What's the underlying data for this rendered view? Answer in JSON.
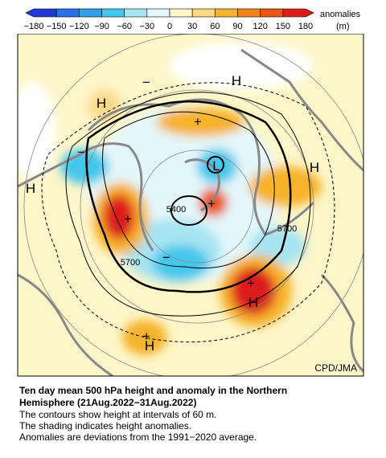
{
  "colorbar": {
    "ticks": [
      "−180",
      "−150",
      "−120",
      "−90",
      "−60",
      "−30",
      "0",
      "30",
      "60",
      "90",
      "120",
      "150",
      "180"
    ],
    "colors": [
      "#2338d0",
      "#2a6fe6",
      "#2f9fe8",
      "#45c6ec",
      "#a6e4f2",
      "#e3f7fb",
      "#fdf6c9",
      "#fbd98a",
      "#f7b32c",
      "#f2881c",
      "#ec561a",
      "#dc1c1c"
    ],
    "label": "anomalies",
    "unit": "(m)"
  },
  "map": {
    "labels": [
      "H",
      "H",
      "H",
      "H",
      "H",
      "H",
      "L",
      "5400",
      "5700",
      "5700",
      "−",
      "−",
      "−",
      "+",
      "+",
      "+",
      "+",
      "+"
    ],
    "credit": "CPD/JMA"
  },
  "caption": {
    "title": [
      "Ten day mean 500 hPa height and anomaly in the Northern",
      "Hemisphere (21Aug.2022−31Aug.2022)"
    ],
    "notes": [
      "The contours show height at intervals of 60 m.",
      "The shading indicates height anomalies.",
      "Anomalies are deviations from the 1991−2020 average."
    ]
  }
}
